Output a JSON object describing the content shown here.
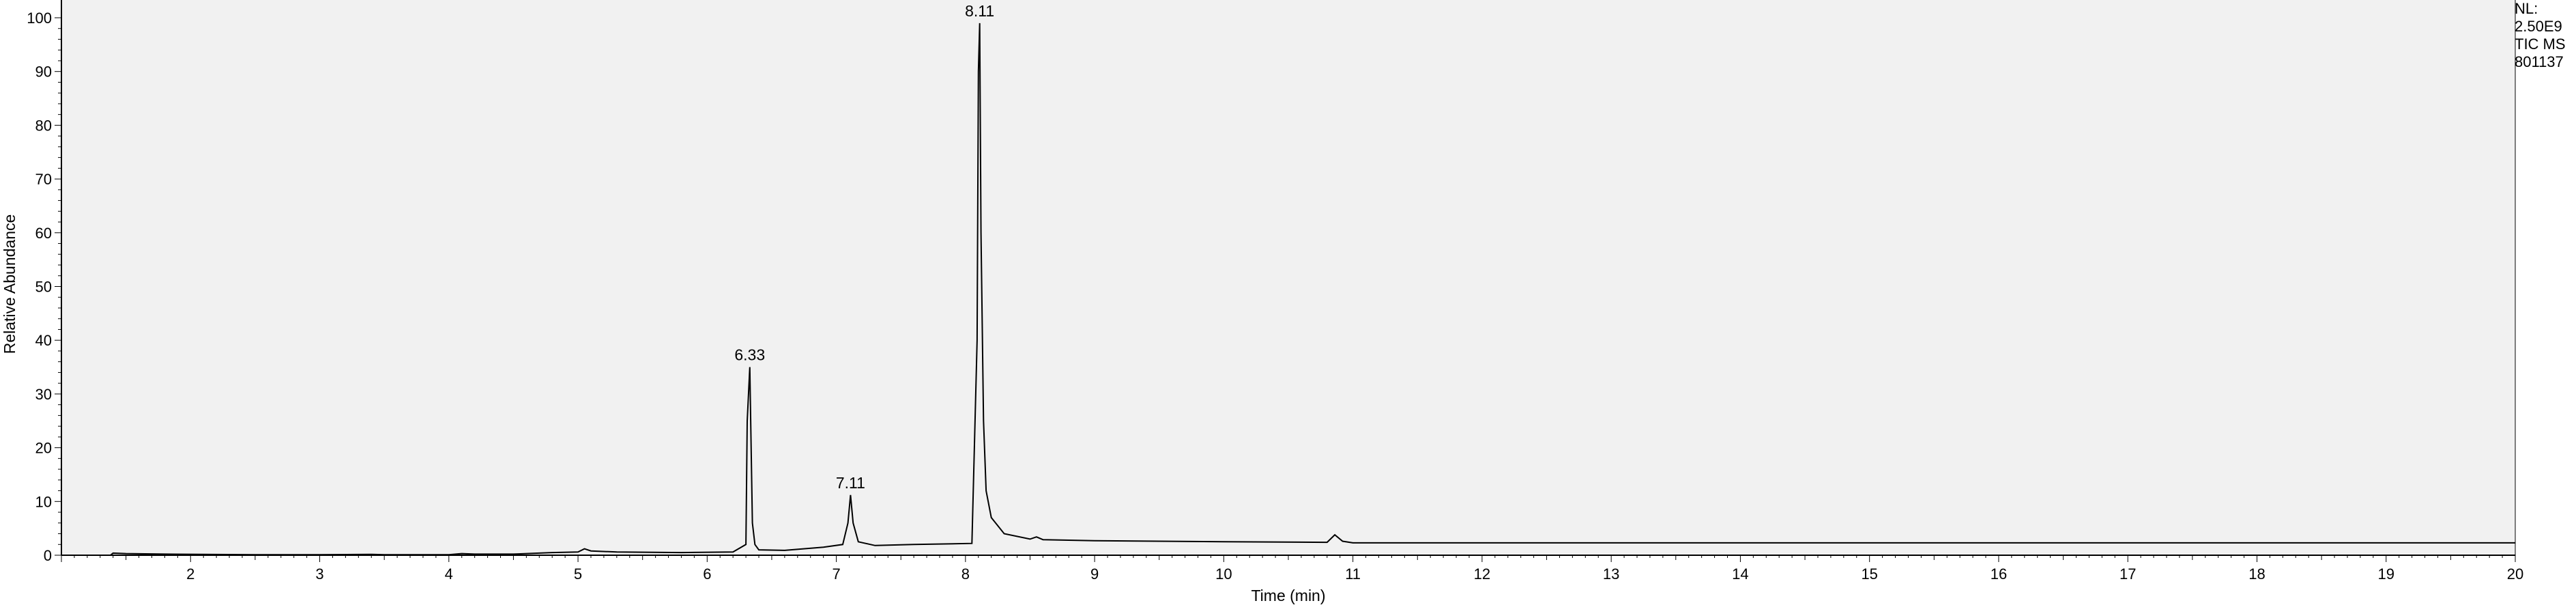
{
  "chart_data": {
    "type": "line",
    "title": "",
    "xlabel": "Time (min)",
    "ylabel": "Relative Abundance",
    "xlim": [
      1.0,
      20.0
    ],
    "ylim": [
      0,
      100
    ],
    "x_ticks": [
      2,
      3,
      4,
      5,
      6,
      7,
      8,
      9,
      10,
      11,
      12,
      13,
      14,
      15,
      16,
      17,
      18,
      19,
      20
    ],
    "y_ticks": [
      0,
      10,
      20,
      30,
      40,
      50,
      60,
      70,
      80,
      90,
      100
    ],
    "grid": false,
    "background": "#f1f1f1",
    "line_color": "#000000",
    "series": [
      {
        "x": [
          1.0,
          1.38,
          1.4,
          1.5,
          1.8,
          2.5,
          3.0,
          3.4,
          3.5,
          4.0,
          4.1,
          4.2,
          4.5,
          4.8,
          5.0,
          5.05,
          5.1,
          5.3,
          5.8,
          6.2,
          6.3,
          6.31,
          6.33,
          6.35,
          6.37,
          6.4,
          6.6,
          6.9,
          7.05,
          7.09,
          7.11,
          7.13,
          7.17,
          7.3,
          7.6,
          8.05,
          8.09,
          8.1,
          8.11,
          8.12,
          8.14,
          8.16,
          8.2,
          8.3,
          8.5,
          8.55,
          8.6,
          9.0,
          10.0,
          10.8,
          10.86,
          10.92,
          11.0,
          12.0,
          14.0,
          16.0,
          18.0,
          20.0
        ],
        "y": [
          0.0,
          0.0,
          0.4,
          0.3,
          0.2,
          0.1,
          0.1,
          0.15,
          0.1,
          0.1,
          0.3,
          0.2,
          0.2,
          0.5,
          0.6,
          1.2,
          0.8,
          0.6,
          0.5,
          0.6,
          2.0,
          25.0,
          35.0,
          6.0,
          2.0,
          1.0,
          0.9,
          1.5,
          2.0,
          6.0,
          11.2,
          6.0,
          2.5,
          1.8,
          2.0,
          2.2,
          40.0,
          90.0,
          99.0,
          60.0,
          25.0,
          12.0,
          7.0,
          4.0,
          3.0,
          3.4,
          2.9,
          2.7,
          2.5,
          2.4,
          3.8,
          2.6,
          2.3,
          2.3,
          2.3,
          2.3,
          2.3,
          2.3
        ]
      }
    ],
    "peak_labels": [
      {
        "x": 6.33,
        "y": 35.0,
        "label": "6.33"
      },
      {
        "x": 7.11,
        "y": 11.2,
        "label": "7.11"
      },
      {
        "x": 8.11,
        "y": 99.0,
        "label": "8.11"
      }
    ]
  },
  "info": {
    "nl_label": "NL:",
    "nl_value": "2.50E9",
    "trace": "TIC  MS",
    "file_id": "801137"
  }
}
